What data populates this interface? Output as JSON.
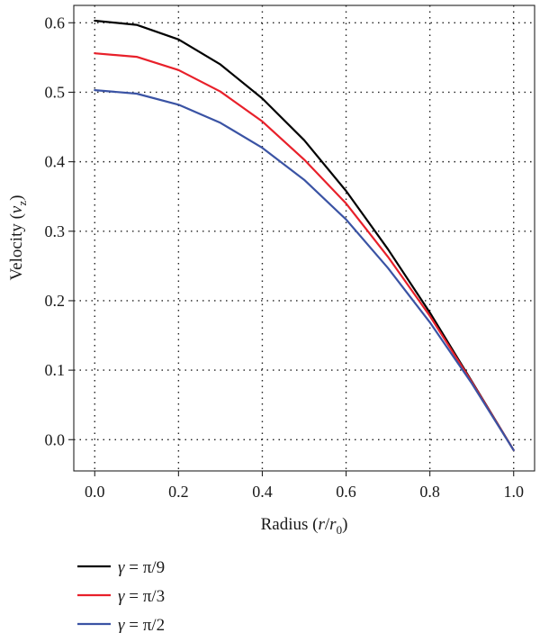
{
  "chart_data": {
    "type": "line",
    "xlabel": "Radius (r/r0)",
    "ylabel": "Velocity (vz)",
    "xlim": [
      -0.05,
      1.05
    ],
    "ylim": [
      -0.045,
      0.625
    ],
    "xticks": [
      "0.0",
      "0.2",
      "0.4",
      "0.6",
      "0.8",
      "1.0"
    ],
    "yticks": [
      "0.0",
      "0.1",
      "0.2",
      "0.3",
      "0.4",
      "0.5",
      "0.6"
    ],
    "grid": true,
    "legend_position": "below",
    "x": [
      0.0,
      0.1,
      0.2,
      0.3,
      0.4,
      0.5,
      0.6,
      0.7,
      0.8,
      0.9,
      1.0
    ],
    "series": [
      {
        "name": "γ = π/9",
        "color": "#000000",
        "values": [
          0.603,
          0.597,
          0.576,
          0.54,
          0.491,
          0.431,
          0.358,
          0.274,
          0.183,
          0.084,
          -0.015
        ]
      },
      {
        "name": "γ = π/3",
        "color": "#e8202a",
        "values": [
          0.556,
          0.551,
          0.532,
          0.501,
          0.458,
          0.403,
          0.34,
          0.263,
          0.178,
          0.083,
          -0.015
        ]
      },
      {
        "name": "γ = π/2",
        "color": "#3a53a4",
        "values": [
          0.503,
          0.498,
          0.482,
          0.456,
          0.42,
          0.374,
          0.317,
          0.247,
          0.169,
          0.081,
          -0.015
        ]
      }
    ]
  }
}
